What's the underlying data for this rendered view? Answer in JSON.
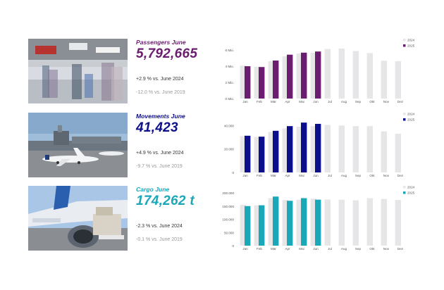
{
  "colors": {
    "prev_year": "#e6e6e8"
  },
  "panels": [
    {
      "id": "passengers",
      "title": "Passengers June",
      "value": "5,792,665",
      "cmp_prev": "+2.9 % vs. June 2024",
      "cmp_2019": "-12.0 % vs. June 2019",
      "accent": "#6b1d6f",
      "photo_icon": "airport-terminal-photo"
    },
    {
      "id": "movements",
      "title": "Movements June",
      "value": "41,423",
      "cmp_prev": "+4.9 % vs. June 2024",
      "cmp_2019": "-9.7 % vs. June 2019",
      "accent": "#0d0e8a",
      "photo_icon": "airport-apron-photo"
    },
    {
      "id": "cargo",
      "title": "Cargo June",
      "value": "174,262 t",
      "cmp_prev": "-2.3 % vs. June 2024",
      "cmp_2019": "-0.1 % vs. June 2019",
      "accent": "#1aa8b8",
      "photo_icon": "cargo-aircraft-photo"
    }
  ],
  "chart_data": [
    {
      "type": "bar",
      "title": "",
      "categories": [
        "Jan",
        "Feb",
        "Mär",
        "Apr",
        "Mai",
        "Jun",
        "Jul",
        "Aug",
        "Sep",
        "Okt",
        "Nov",
        "Dez"
      ],
      "ylim": [
        0,
        6500000
      ],
      "yticks": [
        0,
        2000000,
        4000000,
        6000000
      ],
      "ytick_labels": [
        "0 Mio.",
        "2 Mio.",
        "4 Mio.",
        "6 Mio."
      ],
      "legend_position": "top-right",
      "series": [
        {
          "name": "2024",
          "color": "#e6e6e8",
          "values": [
            4050000,
            3900000,
            4600000,
            5200000,
            5550000,
            5630000,
            6100000,
            6150000,
            5850000,
            5600000,
            4650000,
            4600000
          ]
        },
        {
          "name": "2025",
          "color": "#6b1d6f",
          "values": [
            3980000,
            3880000,
            4680000,
            5400000,
            5650000,
            5792665,
            null,
            null,
            null,
            null,
            null,
            null
          ]
        }
      ]
    },
    {
      "type": "bar",
      "title": "",
      "categories": [
        "Jan",
        "Feb",
        "Mär",
        "Apr",
        "Mai",
        "Jun",
        "Jul",
        "Aug",
        "Sep",
        "Okt",
        "Nov",
        "Dez"
      ],
      "ylim": [
        0,
        45000
      ],
      "yticks": [
        0,
        20000,
        40000
      ],
      "ytick_labels": [
        "0",
        "20.000",
        "40.000"
      ],
      "legend_position": "top-right",
      "series": [
        {
          "name": "2024",
          "color": "#e6e6e8",
          "values": [
            31000,
            30300,
            34500,
            37500,
            39000,
            39500,
            40500,
            40000,
            39500,
            39500,
            35000,
            33000
          ]
        },
        {
          "name": "2025",
          "color": "#0d0e8a",
          "values": [
            31300,
            30500,
            35500,
            39500,
            42500,
            41423,
            null,
            null,
            null,
            null,
            null,
            null
          ]
        }
      ]
    },
    {
      "type": "bar",
      "title": "",
      "categories": [
        "Jan",
        "Feb",
        "Mär",
        "Apr",
        "Mai",
        "Jun",
        "Jul",
        "Aug",
        "Sep",
        "Okt",
        "Nov",
        "Dez"
      ],
      "ylim": [
        0,
        200000
      ],
      "yticks": [
        0,
        50000,
        100000,
        150000,
        200000
      ],
      "ytick_labels": [
        "0",
        "50.000",
        "100.000",
        "150.000",
        "200.000"
      ],
      "legend_position": "top-right",
      "series": [
        {
          "name": "2024",
          "color": "#e6e6e8",
          "values": [
            155000,
            153000,
            180000,
            173000,
            174000,
            178000,
            175000,
            174000,
            172000,
            180000,
            177000,
            173000
          ]
        },
        {
          "name": "2025",
          "color": "#1aa8b8",
          "values": [
            150000,
            153000,
            186000,
            170000,
            180000,
            174262,
            null,
            null,
            null,
            null,
            null,
            null
          ]
        }
      ]
    }
  ]
}
